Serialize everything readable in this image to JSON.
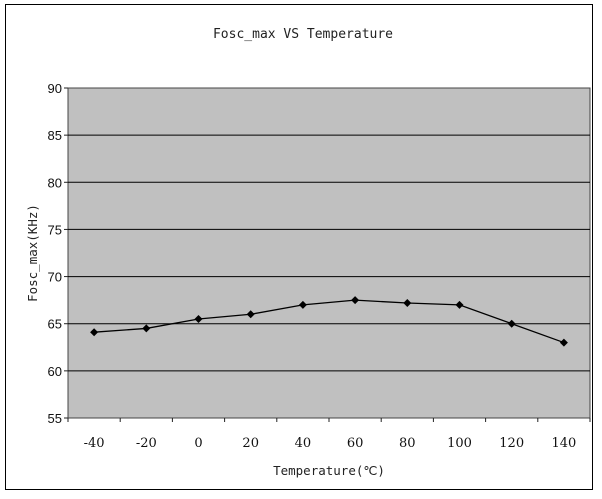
{
  "chart_data": {
    "type": "line",
    "title": "Fosc_max VS Temperature",
    "xlabel": "Temperature(℃)",
    "ylabel": "Fosc_max(KHz)",
    "x": [
      -40,
      -20,
      0,
      20,
      40,
      60,
      80,
      100,
      120,
      140
    ],
    "y_ticks": [
      55,
      60,
      65,
      70,
      75,
      80,
      85,
      90
    ],
    "ylim": [
      55,
      90
    ],
    "grid": "horizontal",
    "legend": "none",
    "series": [
      {
        "values": [
          64.1,
          64.5,
          65.5,
          66.0,
          67.0,
          67.5,
          67.2,
          67.0,
          65.0,
          63.0
        ]
      }
    ],
    "colors": {
      "plot_background": "#c0c0c0",
      "gridline": "#000000",
      "line": "#000000",
      "marker": "#000000"
    }
  }
}
